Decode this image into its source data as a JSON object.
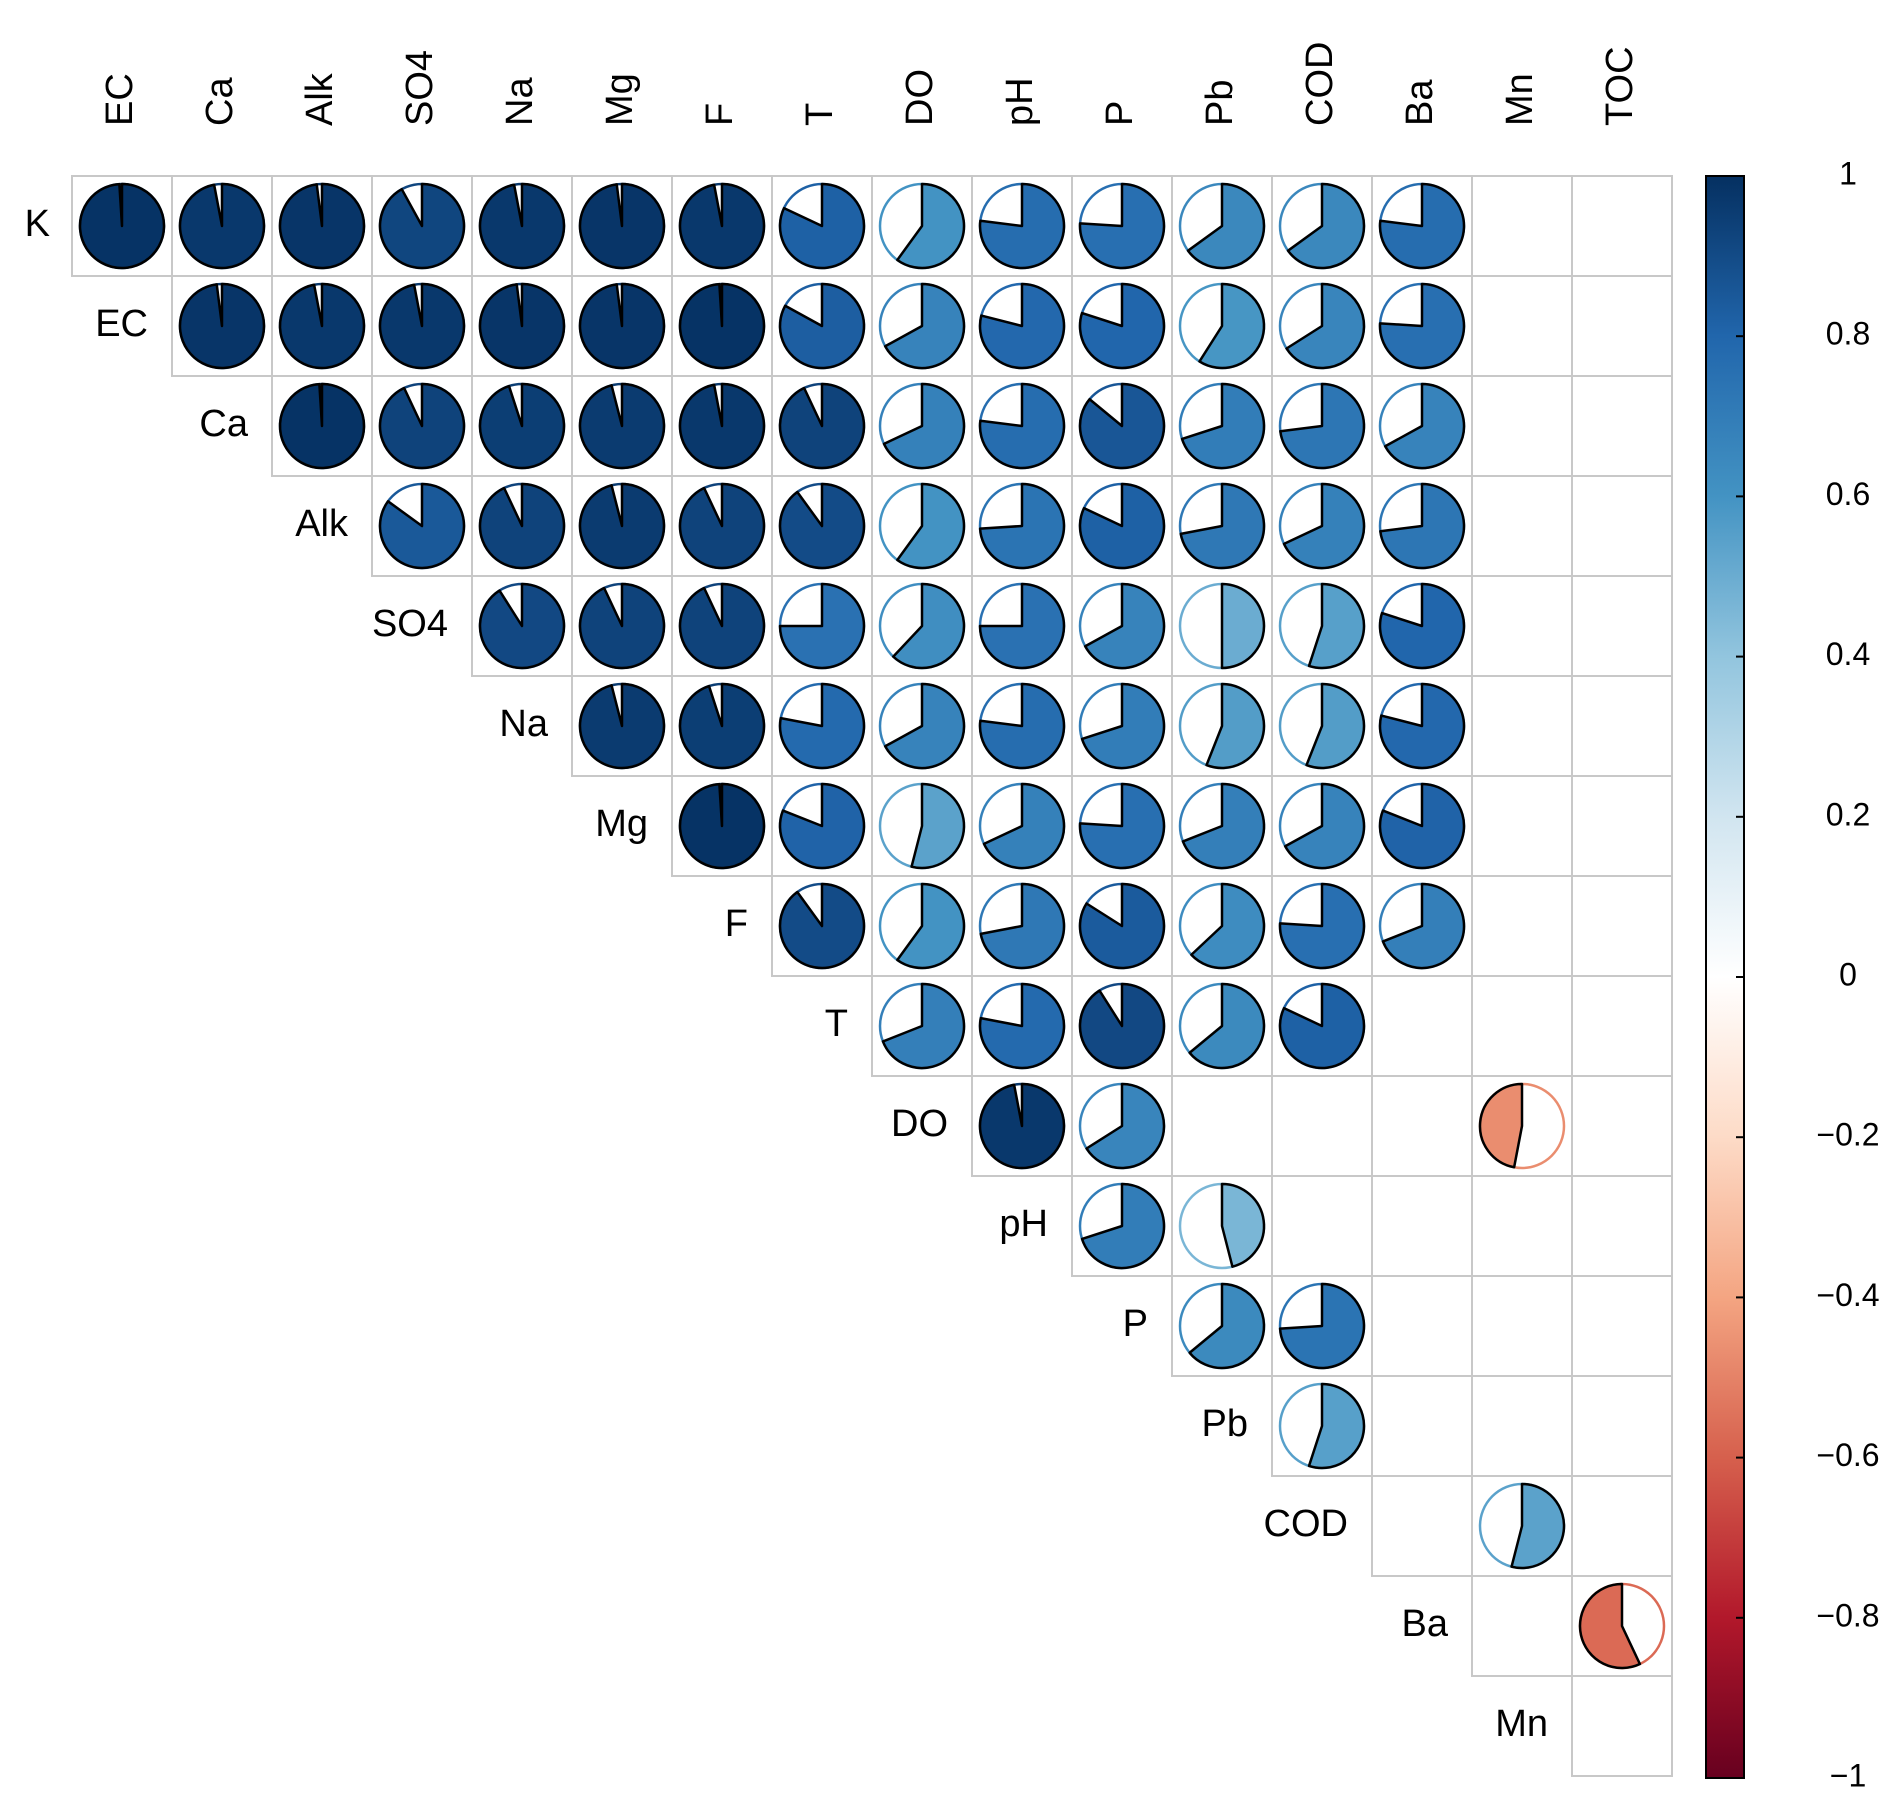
{
  "chart_data": {
    "type": "correlation-pie",
    "row_labels": [
      "K",
      "EC",
      "Ca",
      "Alk",
      "SO4",
      "Na",
      "Mg",
      "F",
      "T",
      "DO",
      "pH",
      "P",
      "Pb",
      "COD",
      "Ba",
      "Mn"
    ],
    "column_labels": [
      "EC",
      "Ca",
      "Alk",
      "SO4",
      "Na",
      "Mg",
      "F",
      "T",
      "DO",
      "pH",
      "P",
      "Pb",
      "COD",
      "Ba",
      "Mn",
      "TOC"
    ],
    "matrix": [
      [
        0.99,
        0.97,
        0.98,
        0.92,
        0.97,
        0.98,
        0.97,
        0.82,
        0.6,
        0.77,
        0.76,
        0.65,
        0.65,
        0.77,
        null,
        null
      ],
      [
        0.98,
        0.97,
        0.97,
        0.98,
        0.98,
        0.99,
        0.83,
        0.67,
        0.79,
        0.8,
        0.59,
        0.66,
        0.76,
        null,
        null
      ],
      [
        0.99,
        0.93,
        0.95,
        0.96,
        0.97,
        0.93,
        0.68,
        0.77,
        0.86,
        0.7,
        0.73,
        0.67,
        null,
        null
      ],
      [
        0.85,
        0.93,
        0.96,
        0.93,
        0.9,
        0.6,
        0.74,
        0.82,
        0.72,
        0.68,
        0.73,
        null,
        null
      ],
      [
        0.91,
        0.93,
        0.93,
        0.75,
        0.62,
        0.75,
        0.67,
        0.5,
        0.55,
        0.8,
        null,
        null
      ],
      [
        0.96,
        0.95,
        0.78,
        0.67,
        0.77,
        0.7,
        0.56,
        0.56,
        0.79,
        null,
        null
      ],
      [
        0.99,
        0.81,
        0.54,
        0.68,
        0.76,
        0.69,
        0.67,
        0.81,
        null,
        null
      ],
      [
        0.9,
        0.6,
        0.72,
        0.84,
        0.63,
        0.76,
        0.69,
        null,
        null
      ],
      [
        0.69,
        0.78,
        0.91,
        0.64,
        0.82,
        null,
        null,
        null
      ],
      [
        0.97,
        0.66,
        null,
        null,
        null,
        -0.47,
        null
      ],
      [
        0.7,
        0.46,
        null,
        null,
        null,
        null
      ],
      [
        0.64,
        0.74,
        null,
        null,
        null
      ],
      [
        0.55,
        null,
        null,
        null
      ],
      [
        null,
        0.54,
        null
      ],
      [
        null,
        -0.57
      ],
      [
        null
      ]
    ],
    "colormap": [
      "#67001F",
      "#B2182B",
      "#D6604D",
      "#F4A582",
      "#FDDBC7",
      "#FFFFFF",
      "#D1E5F0",
      "#92C5DE",
      "#4393C3",
      "#2166AC",
      "#053061"
    ],
    "clim": [
      -1,
      1
    ],
    "cticks": [
      {
        "value": -1,
        "label": "−1"
      },
      {
        "value": -0.8,
        "label": "−0.8"
      },
      {
        "value": -0.6,
        "label": "−0.6"
      },
      {
        "value": -0.4,
        "label": "−0.4"
      },
      {
        "value": -0.2,
        "label": "−0.2"
      },
      0,
      0.2,
      0.4,
      0.6,
      0.8,
      1
    ]
  }
}
